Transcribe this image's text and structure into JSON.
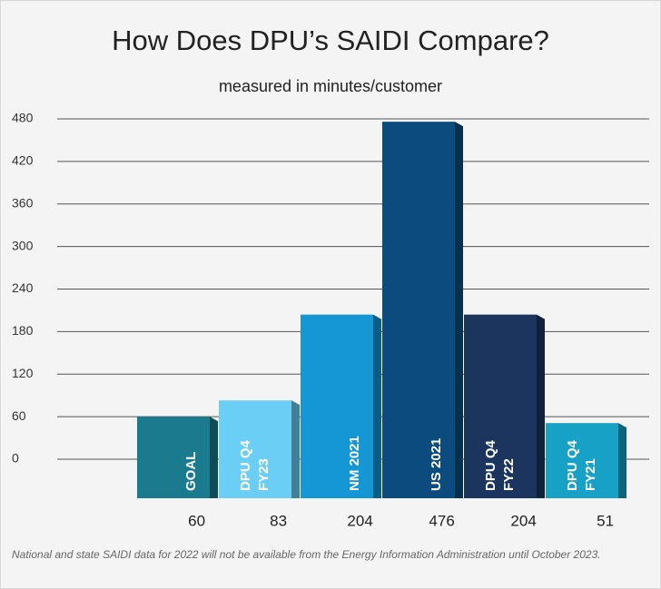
{
  "chart_data": {
    "type": "bar",
    "title": "How Does DPU’s SAIDI Compare?",
    "subtitle": "measured in minutes/customer",
    "categories": [
      "GOAL",
      "DPU Q4 FY23",
      "NM 2021",
      "US 2021",
      "DPU Q4 FY22",
      "DPU Q4 FY21"
    ],
    "values": [
      60,
      83,
      204,
      476,
      204,
      51
    ],
    "colors": [
      "#197b8d",
      "#6bcff5",
      "#1597d6",
      "#0b4b7d",
      "#1b355f",
      "#17a1c6"
    ],
    "ylim": [
      -55,
      480
    ],
    "yticks": [
      0,
      60,
      120,
      180,
      240,
      300,
      360,
      420,
      480
    ],
    "grid": true,
    "annotation": "National and state SAIDI data for 2022 will not be available from the Energy Information Administration until October 2023."
  }
}
